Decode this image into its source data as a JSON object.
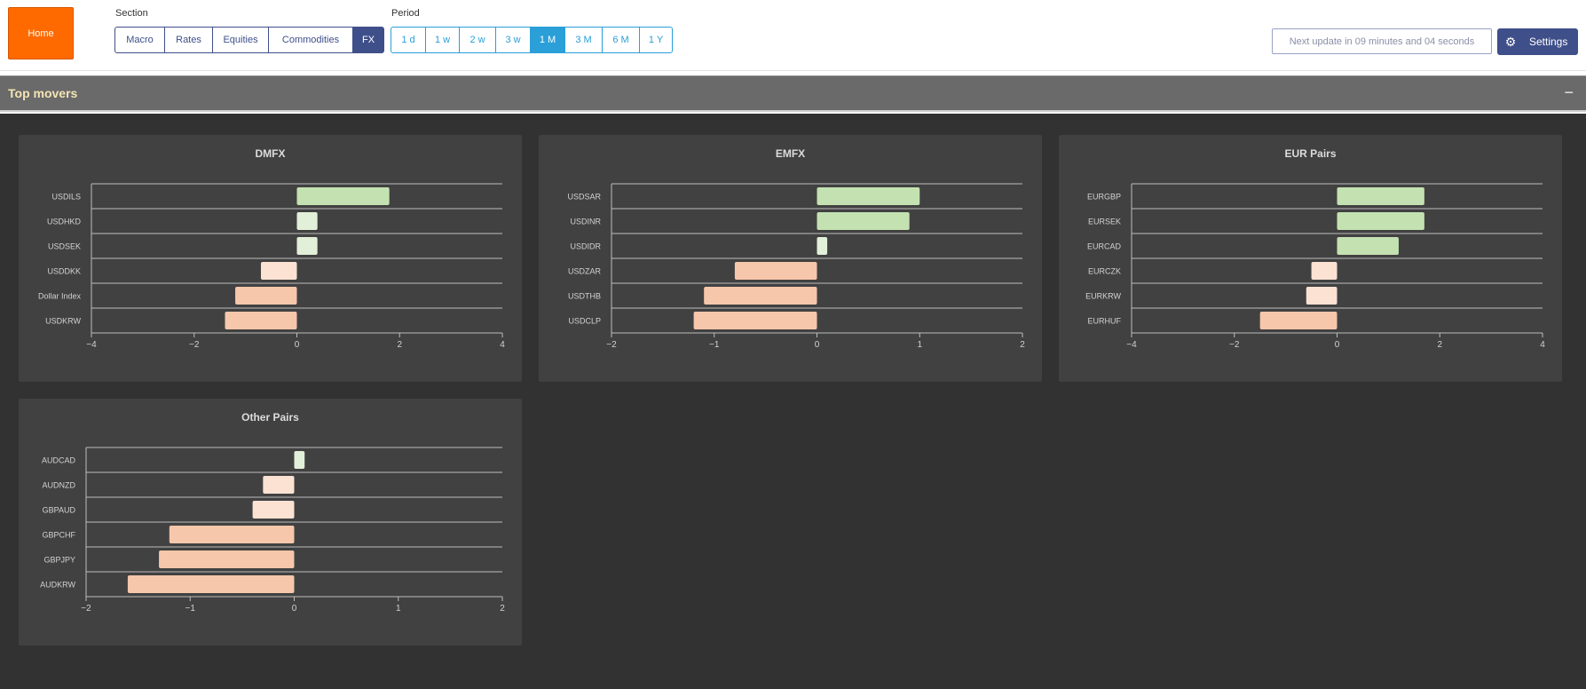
{
  "topbar": {
    "home_label": "Home",
    "section_label": "Section",
    "period_label": "Period",
    "sections": [
      {
        "label": "Macro",
        "active": false
      },
      {
        "label": "Rates",
        "active": false
      },
      {
        "label": "Equities",
        "active": false
      },
      {
        "label": "Commodities",
        "active": false
      },
      {
        "label": "FX",
        "active": true
      }
    ],
    "periods": [
      {
        "label": "1 d",
        "active": false
      },
      {
        "label": "1 w",
        "active": false
      },
      {
        "label": "2 w",
        "active": false
      },
      {
        "label": "3 w",
        "active": false
      },
      {
        "label": "1 M",
        "active": true
      },
      {
        "label": "3 M",
        "active": false
      },
      {
        "label": "6 M",
        "active": false
      },
      {
        "label": "1 Y",
        "active": false
      }
    ],
    "next_update": "Next update in 09 minutes and 04 seconds",
    "settings_label": "Settings",
    "settings_icon": "gear-icon"
  },
  "panel": {
    "title": "Top movers",
    "collapse_symbol": "−"
  },
  "colors": {
    "pos_strong": "#c4e2b1",
    "pos_light": "#e2f0d9",
    "neg_light": "#fbe2d3",
    "neg_strong": "#f6c7ab"
  },
  "chart_data": [
    {
      "type": "bar",
      "orientation": "horizontal",
      "title": "DMFX",
      "categories": [
        "USDILS",
        "USDHKD",
        "USDSEK",
        "USDDKK",
        "Dollar Index",
        "USDKRW"
      ],
      "values": [
        1.8,
        0.4,
        0.4,
        -0.7,
        -1.2,
        -1.4
      ],
      "xlim": [
        -4,
        4
      ],
      "ticks": [
        -4,
        -2,
        0,
        2,
        4
      ],
      "tick_labels": [
        "−4",
        "−2",
        "0",
        "2",
        "4"
      ]
    },
    {
      "type": "bar",
      "orientation": "horizontal",
      "title": "EMFX",
      "categories": [
        "USDSAR",
        "USDINR",
        "USDIDR",
        "USDZAR",
        "USDTHB",
        "USDCLP"
      ],
      "values": [
        1.0,
        0.9,
        0.1,
        -0.8,
        -1.1,
        -1.2
      ],
      "xlim": [
        -2,
        2
      ],
      "ticks": [
        -2,
        -1,
        0,
        1,
        2
      ],
      "tick_labels": [
        "−2",
        "−1",
        "0",
        "1",
        "2"
      ]
    },
    {
      "type": "bar",
      "orientation": "horizontal",
      "title": "EUR Pairs",
      "categories": [
        "EURGBP",
        "EURSEK",
        "EURCAD",
        "EURCZK",
        "EURKRW",
        "EURHUF"
      ],
      "values": [
        1.7,
        1.7,
        1.2,
        -0.5,
        -0.6,
        -1.5
      ],
      "xlim": [
        -4,
        4
      ],
      "ticks": [
        -4,
        -2,
        0,
        2,
        4
      ],
      "tick_labels": [
        "−4",
        "−2",
        "0",
        "2",
        "4"
      ]
    },
    {
      "type": "bar",
      "orientation": "horizontal",
      "title": "Other Pairs",
      "categories": [
        "AUDCAD",
        "AUDNZD",
        "GBPAUD",
        "GBPCHF",
        "GBPJPY",
        "AUDKRW"
      ],
      "values": [
        0.1,
        -0.3,
        -0.4,
        -1.2,
        -1.3,
        -1.6
      ],
      "xlim": [
        -2,
        2
      ],
      "ticks": [
        -2,
        -1,
        0,
        1,
        2
      ],
      "tick_labels": [
        "−2",
        "−1",
        "0",
        "1",
        "2"
      ]
    }
  ]
}
